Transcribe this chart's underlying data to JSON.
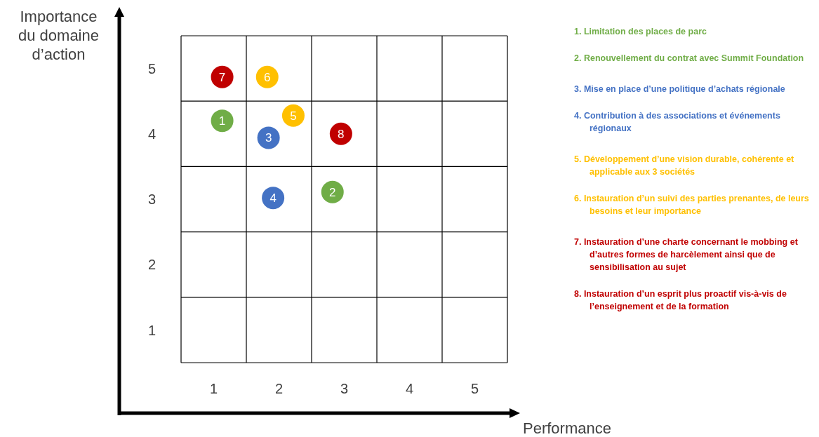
{
  "chart_data": {
    "type": "scatter",
    "xlabel": "Performance",
    "ylabel": "Importance du domaine d’action",
    "xlim": [
      0.5,
      5.5
    ],
    "ylim": [
      0.5,
      5.5
    ],
    "xticks": [
      {
        "value": 0.5,
        "label": null
      },
      1,
      {
        "value": 1.5,
        "label": null
      },
      2,
      {
        "value": 2.5,
        "label": null
      },
      3,
      {
        "value": 3.5,
        "label": null
      },
      4,
      {
        "value": 4.5,
        "label": null
      },
      5,
      {
        "value": 5.5,
        "label": null
      }
    ],
    "yticks": [
      {
        "value": 0.5,
        "label": null
      },
      1,
      {
        "value": 1.5,
        "label": null
      },
      2,
      {
        "value": 2.5,
        "label": null
      },
      3,
      {
        "value": 3.5,
        "label": null
      },
      4,
      {
        "value": 4.5,
        "label": null
      },
      5,
      {
        "value": 5.5,
        "label": null
      }
    ],
    "grid": true,
    "marker": "circle",
    "series": [
      {
        "name": "1",
        "color": "#70ad47",
        "x": [
          1.13
        ],
        "values": [
          4.2
        ]
      },
      {
        "name": "2",
        "color": "#70ad47",
        "x": [
          2.82
        ],
        "values": [
          3.11
        ]
      },
      {
        "name": "3",
        "color": "#4472c4",
        "x": [
          1.84
        ],
        "values": [
          3.94
        ]
      },
      {
        "name": "4",
        "color": "#4472c4",
        "x": [
          1.91
        ],
        "values": [
          3.02
        ]
      },
      {
        "name": "5",
        "color": "#ffc000",
        "x": [
          2.22
        ],
        "values": [
          4.28
        ]
      },
      {
        "name": "6",
        "color": "#ffc000",
        "x": [
          1.82
        ],
        "values": [
          4.87
        ]
      },
      {
        "name": "7",
        "color": "#c00000",
        "x": [
          1.13
        ],
        "values": [
          4.87
        ]
      },
      {
        "name": "8",
        "color": "#c00000",
        "x": [
          2.95
        ],
        "values": [
          4.0
        ]
      }
    ],
    "annotations": [
      "1. Limitation des places de parc",
      "2. Renouvellement du contrat avec Summit Foundation",
      "3. Mise en place d’une politique d’achats régionale",
      "4. Contribution à des associations et événements régionaux",
      "5. Développement d’une vision durable, cohérente et applicable aux 3 sociétés",
      "6. Instauration d’un suivi des parties prenantes, de leurs besoins et leur importance",
      "7. Instauration d’une charte concernant le mobbing et d’autres formes de harcèlement ainsi que de sensibilisation au sujet",
      "8. Instauration d’un esprit plus proactif vis-à-vis de l’enseignement et de la formation"
    ]
  }
}
